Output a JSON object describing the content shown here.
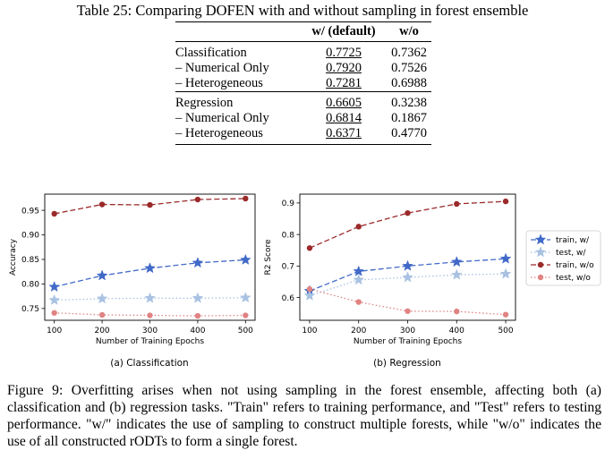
{
  "table": {
    "caption": "Table 25: Comparing DOFEN with and without sampling in forest ensemble",
    "header": [
      "",
      "w/ (default)",
      "w/o"
    ],
    "rows": [
      {
        "label": "Classification",
        "with": "0.7725",
        "without": "0.7362"
      },
      {
        "label": "– Numerical Only",
        "with": "0.7920",
        "without": "0.7526"
      },
      {
        "label": "– Heterogeneous",
        "with": "0.7281",
        "without": "0.6988"
      },
      {
        "label": "Regression",
        "with": "0.6605",
        "without": "0.3238"
      },
      {
        "label": "– Numerical Only",
        "with": "0.6814",
        "without": "0.1867"
      },
      {
        "label": "– Heterogeneous",
        "with": "0.6371",
        "without": "0.4770"
      }
    ]
  },
  "chart_data": [
    {
      "type": "line",
      "subtitle": "(a) Classification",
      "xlabel": "Number of Training Epochs",
      "ylabel": "Accuracy",
      "x": [
        100,
        200,
        300,
        400,
        500
      ],
      "xticks": [
        "100",
        "200",
        "300",
        "400",
        "500"
      ],
      "yticks": [
        0.75,
        0.8,
        0.85,
        0.9,
        0.95
      ],
      "ytick_labels": [
        "0.75",
        "0.80",
        "0.85",
        "0.90",
        "0.95"
      ],
      "xlim": [
        80,
        520
      ],
      "ylim": [
        0.726,
        0.983
      ],
      "series": [
        {
          "name": "train, w/",
          "values": [
            0.794,
            0.817,
            0.832,
            0.843,
            0.849
          ]
        },
        {
          "name": "test, w/",
          "values": [
            0.767,
            0.77,
            0.771,
            0.771,
            0.772
          ]
        },
        {
          "name": "train, w/o",
          "values": [
            0.943,
            0.962,
            0.961,
            0.972,
            0.974
          ]
        },
        {
          "name": "test, w/o",
          "values": [
            0.741,
            0.737,
            0.736,
            0.735,
            0.736
          ]
        }
      ]
    },
    {
      "type": "line",
      "subtitle": "(b) Regression",
      "xlabel": "Number of Training Epochs",
      "ylabel": "R2 Score",
      "x": [
        100,
        200,
        300,
        400,
        500
      ],
      "xticks": [
        "100",
        "200",
        "300",
        "400",
        "500"
      ],
      "yticks": [
        0.6,
        0.7,
        0.8,
        0.9
      ],
      "ytick_labels": [
        "0.6",
        "0.7",
        "0.8",
        "0.9"
      ],
      "xlim": [
        80,
        520
      ],
      "ylim": [
        0.528,
        0.928
      ],
      "series": [
        {
          "name": "train, w/",
          "values": [
            0.621,
            0.683,
            0.7,
            0.713,
            0.723
          ]
        },
        {
          "name": "test, w/",
          "values": [
            0.606,
            0.656,
            0.664,
            0.672,
            0.675
          ]
        },
        {
          "name": "train, w/o",
          "values": [
            0.757,
            0.825,
            0.868,
            0.897,
            0.905
          ]
        },
        {
          "name": "test, w/o",
          "values": [
            0.627,
            0.586,
            0.557,
            0.556,
            0.546
          ]
        }
      ]
    }
  ],
  "legend": {
    "entries": [
      "train, w/",
      "test, w/",
      "train, w/o",
      "test, w/o"
    ],
    "placement": "right"
  },
  "colors": {
    "train_w": "#4169c8",
    "test_w": "#a9c2e2",
    "train_wo": "#9b2a2a",
    "test_wo": "#e08383",
    "axis": "#000000"
  },
  "figure_caption": "Figure 9: Overfitting arises when not using sampling in the forest ensemble, affecting both (a) classification and (b) regression tasks. \"Train\" refers to training performance, and \"Test\" refers to testing performance. \"w/\" indicates the use of sampling to construct multiple forests, while \"w/o\" indicates the use of all constructed rODTs to form a single forest."
}
